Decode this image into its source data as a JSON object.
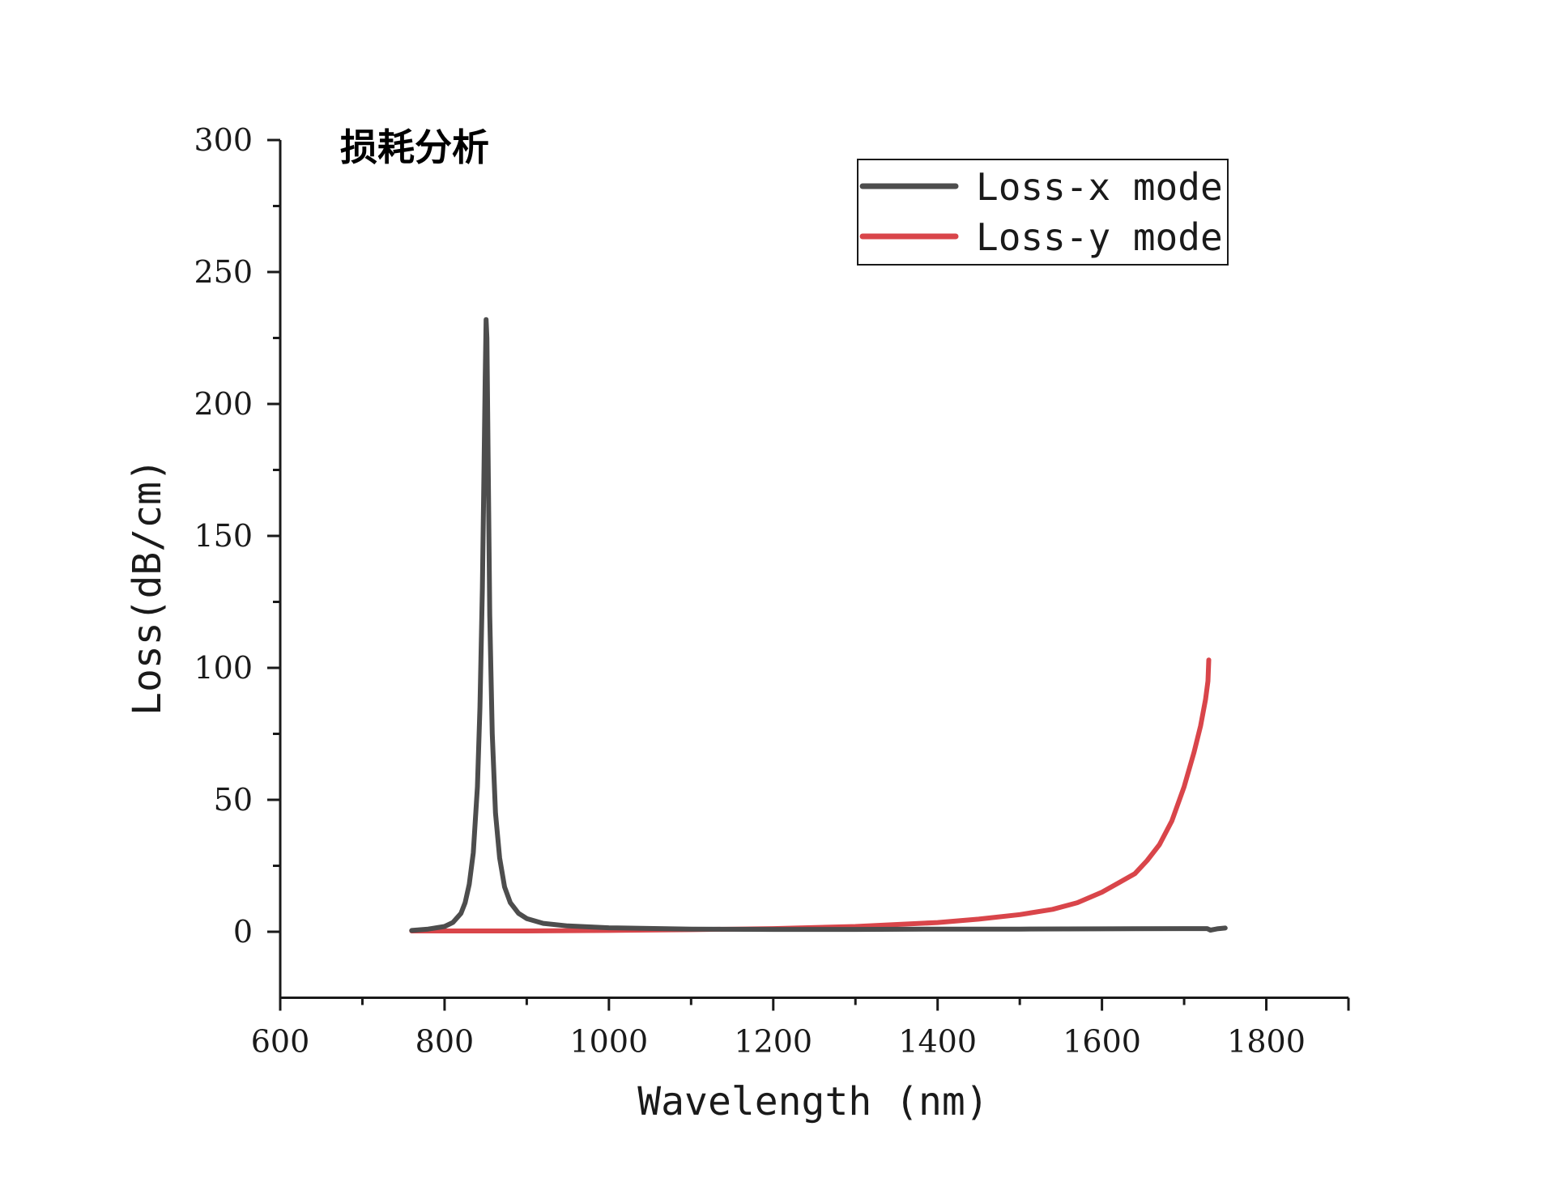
{
  "chart_data": {
    "type": "line",
    "title": "损耗分析",
    "xlabel": "Wavelength (nm)",
    "ylabel": "Loss(dB/cm)",
    "xlim": [
      600,
      1900
    ],
    "ylim": [
      -25,
      300
    ],
    "xticks": [
      600,
      800,
      1000,
      1200,
      1400,
      1600,
      1800
    ],
    "yticks": [
      0,
      50,
      100,
      150,
      200,
      250,
      300
    ],
    "grid": false,
    "legend": {
      "position": "top-right",
      "frame": true
    },
    "series": [
      {
        "name": "Loss-x mode",
        "color": "#4d4d4d",
        "points": [
          [
            760,
            0.5
          ],
          [
            780,
            1.0
          ],
          [
            800,
            2.0
          ],
          [
            810,
            3.5
          ],
          [
            820,
            7
          ],
          [
            825,
            11
          ],
          [
            830,
            18
          ],
          [
            835,
            30
          ],
          [
            840,
            55
          ],
          [
            843,
            85
          ],
          [
            846,
            130
          ],
          [
            848,
            175
          ],
          [
            849.5,
            210
          ],
          [
            850.5,
            232
          ],
          [
            851.5,
            225
          ],
          [
            853,
            180
          ],
          [
            855,
            120
          ],
          [
            858,
            75
          ],
          [
            862,
            45
          ],
          [
            867,
            28
          ],
          [
            873,
            17
          ],
          [
            880,
            11
          ],
          [
            890,
            7
          ],
          [
            900,
            5
          ],
          [
            920,
            3.2
          ],
          [
            950,
            2.2
          ],
          [
            1000,
            1.5
          ],
          [
            1100,
            1.0
          ],
          [
            1200,
            0.9
          ],
          [
            1300,
            0.9
          ],
          [
            1400,
            1.0
          ],
          [
            1500,
            1.0
          ],
          [
            1600,
            1.1
          ],
          [
            1700,
            1.2
          ],
          [
            1728,
            1.2
          ],
          [
            1732,
            0.6
          ],
          [
            1740,
            1.1
          ],
          [
            1750,
            1.4
          ]
        ]
      },
      {
        "name": "Loss-y mode",
        "color": "#d9454a",
        "points": [
          [
            760,
            0.3
          ],
          [
            900,
            0.3
          ],
          [
            1000,
            0.5
          ],
          [
            1100,
            0.8
          ],
          [
            1200,
            1.2
          ],
          [
            1300,
            2.0
          ],
          [
            1400,
            3.5
          ],
          [
            1450,
            4.8
          ],
          [
            1500,
            6.5
          ],
          [
            1540,
            8.5
          ],
          [
            1570,
            11
          ],
          [
            1600,
            15
          ],
          [
            1620,
            18.5
          ],
          [
            1640,
            22
          ],
          [
            1655,
            27
          ],
          [
            1670,
            33
          ],
          [
            1685,
            42
          ],
          [
            1700,
            55
          ],
          [
            1712,
            68
          ],
          [
            1720,
            78
          ],
          [
            1726,
            88
          ],
          [
            1729,
            95
          ],
          [
            1730,
            103
          ]
        ]
      }
    ]
  }
}
